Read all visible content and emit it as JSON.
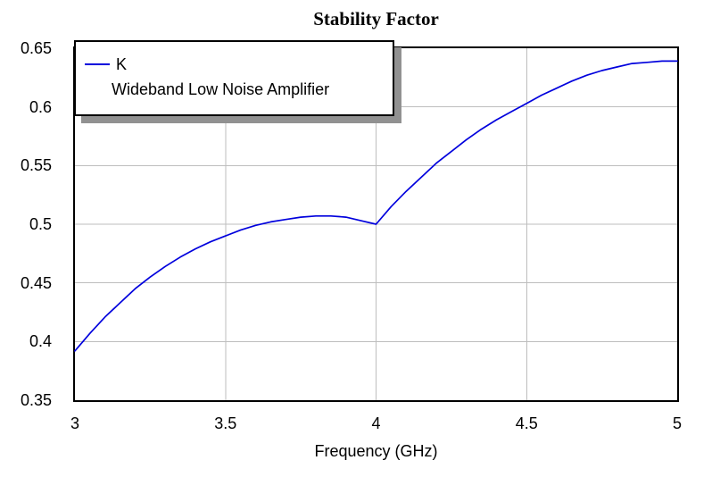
{
  "title": "Stability Factor",
  "legend": {
    "series_label": "K",
    "subtitle": "Wideband Low Noise Amplifier"
  },
  "axes": {
    "x_title": "Frequency (GHz)"
  },
  "colors": {
    "series": "#0000dd",
    "grid": "#bebebe",
    "axis_border": "#000000",
    "legend_shadow": "#919191",
    "background": "#ffffff"
  },
  "chart_data": {
    "type": "line",
    "title": "Stability Factor",
    "xlabel": "Frequency (GHz)",
    "ylabel": "",
    "xlim": [
      3,
      5
    ],
    "ylim": [
      0.35,
      0.65
    ],
    "x_ticks": [
      3,
      3.5,
      4,
      4.5,
      5
    ],
    "x_tick_labels": [
      "3",
      "3.5",
      "4",
      "4.5",
      "5"
    ],
    "y_ticks": [
      0.35,
      0.4,
      0.45,
      0.5,
      0.55,
      0.6,
      0.65
    ],
    "y_tick_labels": [
      "0.35",
      "0.4",
      "0.45",
      "0.5",
      "0.55",
      "0.6",
      "0.65"
    ],
    "grid": true,
    "legend_position": "top-left",
    "series": [
      {
        "name": "K",
        "x": [
          3.0,
          3.05,
          3.1,
          3.15,
          3.2,
          3.25,
          3.3,
          3.35,
          3.4,
          3.45,
          3.5,
          3.55,
          3.6,
          3.65,
          3.7,
          3.75,
          3.8,
          3.85,
          3.9,
          3.95,
          4.0,
          4.05,
          4.1,
          4.15,
          4.2,
          4.25,
          4.3,
          4.35,
          4.4,
          4.45,
          4.5,
          4.55,
          4.6,
          4.65,
          4.7,
          4.75,
          4.8,
          4.85,
          4.9,
          4.95,
          5.0
        ],
        "y": [
          0.392,
          0.407,
          0.421,
          0.433,
          0.445,
          0.455,
          0.464,
          0.472,
          0.479,
          0.485,
          0.49,
          0.495,
          0.499,
          0.502,
          0.504,
          0.506,
          0.507,
          0.507,
          0.506,
          0.503,
          0.5,
          0.515,
          0.528,
          0.54,
          0.552,
          0.562,
          0.572,
          0.581,
          0.589,
          0.596,
          0.603,
          0.61,
          0.616,
          0.622,
          0.627,
          0.631,
          0.634,
          0.637,
          0.638,
          0.639,
          0.639
        ]
      }
    ]
  }
}
